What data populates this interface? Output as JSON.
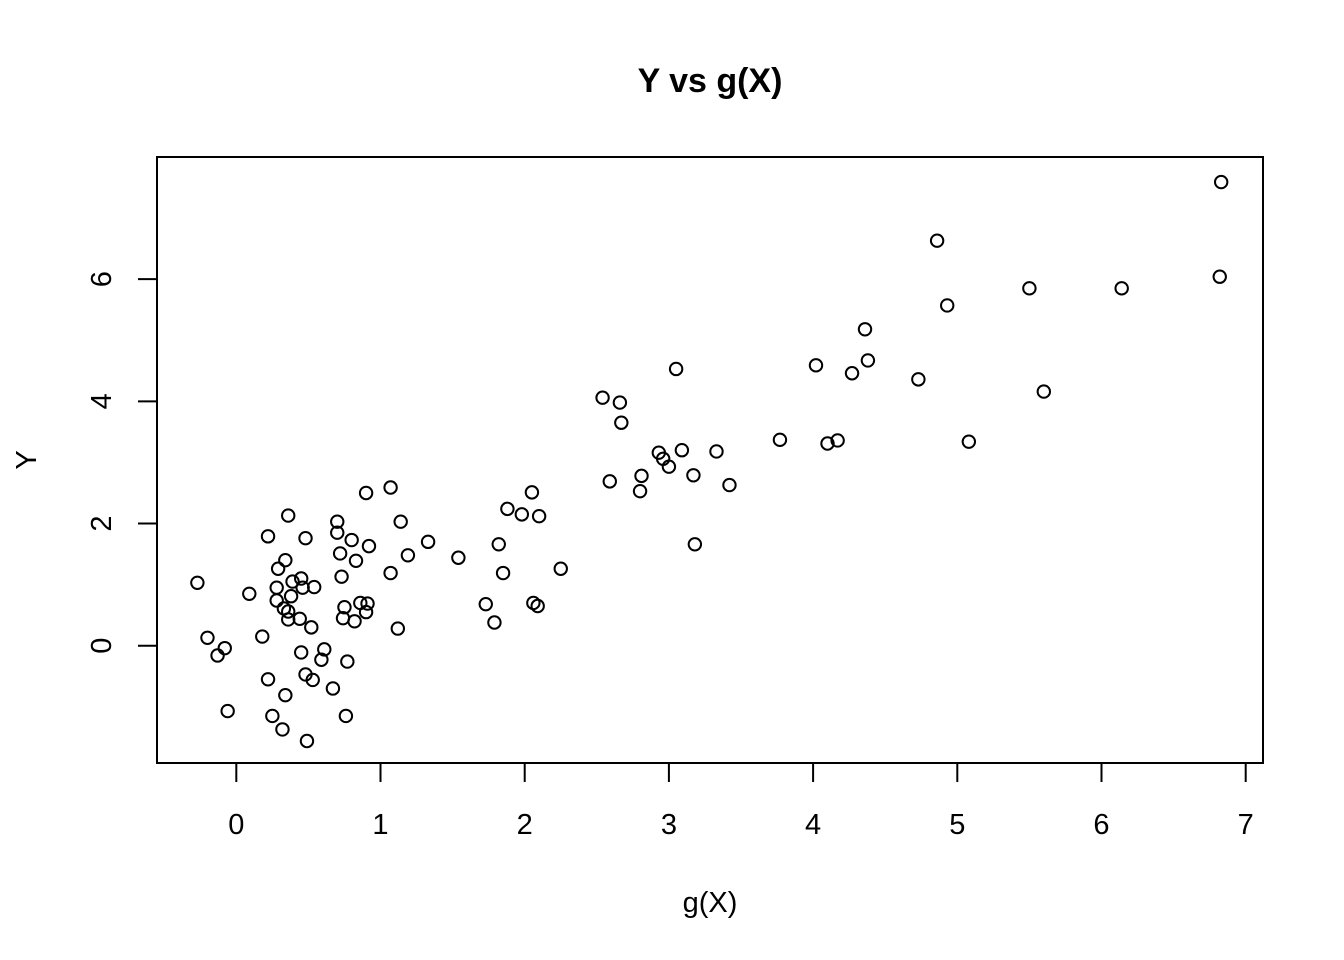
{
  "chart_data": {
    "type": "scatter",
    "title": "Y vs g(X)",
    "xlabel": "g(X)",
    "ylabel": "Y",
    "xlim": [
      -0.55,
      7.12
    ],
    "ylim": [
      -1.92,
      8.0
    ],
    "xticks": [
      0,
      1,
      2,
      3,
      4,
      5,
      6,
      7
    ],
    "yticks": [
      0,
      2,
      4,
      6
    ],
    "grid": false,
    "legend": "none",
    "points": [
      {
        "x": -0.27,
        "y": 1.03
      },
      {
        "x": -0.2,
        "y": 0.13
      },
      {
        "x": -0.13,
        "y": -0.16
      },
      {
        "x": -0.08,
        "y": -0.04
      },
      {
        "x": -0.06,
        "y": -1.07
      },
      {
        "x": 0.09,
        "y": 0.85
      },
      {
        "x": 0.18,
        "y": 0.15
      },
      {
        "x": 0.22,
        "y": -0.55
      },
      {
        "x": 0.22,
        "y": 1.79
      },
      {
        "x": 0.25,
        "y": -1.15
      },
      {
        "x": 0.28,
        "y": 0.95
      },
      {
        "x": 0.28,
        "y": 0.74
      },
      {
        "x": 0.29,
        "y": 1.26
      },
      {
        "x": 0.32,
        "y": -1.37
      },
      {
        "x": 0.33,
        "y": 0.61
      },
      {
        "x": 0.34,
        "y": 1.4
      },
      {
        "x": 0.34,
        "y": -0.81
      },
      {
        "x": 0.36,
        "y": 2.13
      },
      {
        "x": 0.36,
        "y": 0.56
      },
      {
        "x": 0.36,
        "y": 0.43
      },
      {
        "x": 0.38,
        "y": 0.81
      },
      {
        "x": 0.39,
        "y": 1.05
      },
      {
        "x": 0.44,
        "y": 0.44
      },
      {
        "x": 0.45,
        "y": -0.11
      },
      {
        "x": 0.45,
        "y": 1.1
      },
      {
        "x": 0.46,
        "y": 0.95
      },
      {
        "x": 0.48,
        "y": 1.76
      },
      {
        "x": 0.48,
        "y": -0.47
      },
      {
        "x": 0.49,
        "y": -1.56
      },
      {
        "x": 0.52,
        "y": 0.3
      },
      {
        "x": 0.53,
        "y": -0.56
      },
      {
        "x": 0.54,
        "y": 0.96
      },
      {
        "x": 0.59,
        "y": -0.23
      },
      {
        "x": 0.61,
        "y": -0.06
      },
      {
        "x": 0.67,
        "y": -0.7
      },
      {
        "x": 0.7,
        "y": 2.03
      },
      {
        "x": 0.7,
        "y": 1.85
      },
      {
        "x": 0.72,
        "y": 1.51
      },
      {
        "x": 0.73,
        "y": 1.13
      },
      {
        "x": 0.74,
        "y": 0.45
      },
      {
        "x": 0.75,
        "y": 0.63
      },
      {
        "x": 0.76,
        "y": -1.15
      },
      {
        "x": 0.77,
        "y": -0.26
      },
      {
        "x": 0.8,
        "y": 1.73
      },
      {
        "x": 0.82,
        "y": 0.4
      },
      {
        "x": 0.83,
        "y": 1.39
      },
      {
        "x": 0.86,
        "y": 0.7
      },
      {
        "x": 0.9,
        "y": 0.55
      },
      {
        "x": 0.9,
        "y": 2.5
      },
      {
        "x": 0.91,
        "y": 0.69
      },
      {
        "x": 0.92,
        "y": 1.63
      },
      {
        "x": 1.07,
        "y": 2.59
      },
      {
        "x": 1.07,
        "y": 1.19
      },
      {
        "x": 1.12,
        "y": 0.28
      },
      {
        "x": 1.14,
        "y": 2.03
      },
      {
        "x": 1.19,
        "y": 1.48
      },
      {
        "x": 1.33,
        "y": 1.7
      },
      {
        "x": 1.54,
        "y": 1.44
      },
      {
        "x": 1.73,
        "y": 0.68
      },
      {
        "x": 1.79,
        "y": 0.38
      },
      {
        "x": 1.82,
        "y": 1.66
      },
      {
        "x": 1.85,
        "y": 1.19
      },
      {
        "x": 1.88,
        "y": 2.24
      },
      {
        "x": 1.98,
        "y": 2.15
      },
      {
        "x": 2.05,
        "y": 2.51
      },
      {
        "x": 2.06,
        "y": 0.7
      },
      {
        "x": 2.09,
        "y": 0.65
      },
      {
        "x": 2.1,
        "y": 2.12
      },
      {
        "x": 2.25,
        "y": 1.26
      },
      {
        "x": 2.54,
        "y": 4.06
      },
      {
        "x": 2.59,
        "y": 2.69
      },
      {
        "x": 2.66,
        "y": 3.98
      },
      {
        "x": 2.67,
        "y": 3.65
      },
      {
        "x": 2.8,
        "y": 2.53
      },
      {
        "x": 2.81,
        "y": 2.78
      },
      {
        "x": 2.93,
        "y": 3.16
      },
      {
        "x": 2.96,
        "y": 3.06
      },
      {
        "x": 3.0,
        "y": 2.93
      },
      {
        "x": 3.05,
        "y": 4.53
      },
      {
        "x": 3.09,
        "y": 3.2
      },
      {
        "x": 3.17,
        "y": 2.79
      },
      {
        "x": 3.18,
        "y": 1.66
      },
      {
        "x": 3.33,
        "y": 3.18
      },
      {
        "x": 3.42,
        "y": 2.63
      },
      {
        "x": 3.77,
        "y": 3.37
      },
      {
        "x": 4.02,
        "y": 4.59
      },
      {
        "x": 4.1,
        "y": 3.31
      },
      {
        "x": 4.17,
        "y": 3.36
      },
      {
        "x": 4.27,
        "y": 4.46
      },
      {
        "x": 4.36,
        "y": 5.18
      },
      {
        "x": 4.38,
        "y": 4.67
      },
      {
        "x": 4.73,
        "y": 4.36
      },
      {
        "x": 4.86,
        "y": 6.63
      },
      {
        "x": 4.93,
        "y": 5.57
      },
      {
        "x": 5.08,
        "y": 3.34
      },
      {
        "x": 5.5,
        "y": 5.85
      },
      {
        "x": 5.6,
        "y": 4.16
      },
      {
        "x": 6.14,
        "y": 5.85
      },
      {
        "x": 6.82,
        "y": 6.04
      },
      {
        "x": 6.83,
        "y": 7.59
      }
    ]
  }
}
